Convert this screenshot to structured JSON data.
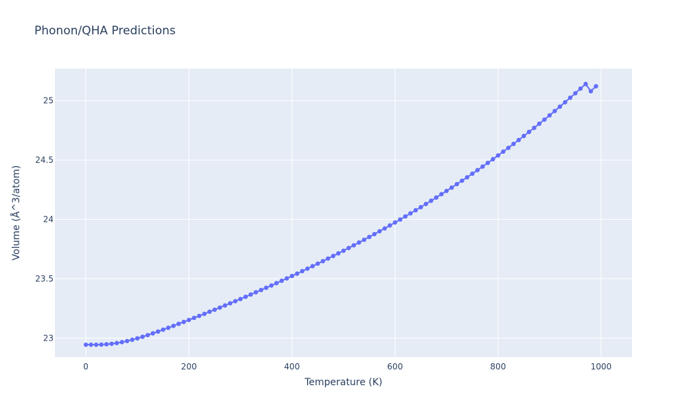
{
  "chart_data": {
    "type": "scatter",
    "mode": "lines+markers",
    "title": "Phonon/QHA Predictions",
    "xlabel": "Temperature (K)",
    "ylabel": "Volume (Å^3/atom)",
    "xlim": [
      -60,
      1060
    ],
    "ylim": [
      22.84,
      25.27
    ],
    "xticks": [
      0,
      200,
      400,
      600,
      800,
      1000
    ],
    "yticks": [
      23,
      23.5,
      24,
      24.5,
      25
    ],
    "grid": true,
    "legend": "none",
    "series": [
      {
        "x": [
          0,
          10,
          20,
          30,
          40,
          50,
          60,
          70,
          80,
          90,
          100,
          110,
          120,
          130,
          140,
          150,
          160,
          170,
          180,
          190,
          200,
          210,
          220,
          230,
          240,
          250,
          260,
          270,
          280,
          290,
          300,
          310,
          320,
          330,
          340,
          350,
          360,
          370,
          380,
          390,
          400,
          410,
          420,
          430,
          440,
          450,
          460,
          470,
          480,
          490,
          500,
          510,
          520,
          530,
          540,
          550,
          560,
          570,
          580,
          590,
          600,
          610,
          620,
          630,
          640,
          650,
          660,
          670,
          680,
          690,
          700,
          710,
          720,
          730,
          740,
          750,
          760,
          770,
          780,
          790,
          800,
          810,
          820,
          830,
          840,
          850,
          860,
          870,
          880,
          890,
          900,
          910,
          920,
          930,
          940,
          950,
          960,
          970,
          980,
          990
        ],
        "y": [
          22.944,
          22.944,
          22.944,
          22.945,
          22.948,
          22.952,
          22.958,
          22.966,
          22.975,
          22.986,
          22.998,
          23.011,
          23.025,
          23.04,
          23.055,
          23.071,
          23.087,
          23.103,
          23.12,
          23.136,
          23.153,
          23.17,
          23.187,
          23.204,
          23.222,
          23.239,
          23.257,
          23.275,
          23.293,
          23.311,
          23.329,
          23.348,
          23.367,
          23.386,
          23.405,
          23.424,
          23.443,
          23.463,
          23.483,
          23.503,
          23.523,
          23.543,
          23.564,
          23.585,
          23.606,
          23.627,
          23.648,
          23.67,
          23.692,
          23.714,
          23.736,
          23.759,
          23.782,
          23.805,
          23.828,
          23.852,
          23.876,
          23.9,
          23.924,
          23.949,
          23.974,
          23.999,
          24.025,
          24.051,
          24.077,
          24.103,
          24.13,
          24.157,
          24.184,
          24.212,
          24.24,
          24.268,
          24.297,
          24.326,
          24.355,
          24.385,
          24.415,
          24.445,
          24.476,
          24.507,
          24.539,
          24.571,
          24.603,
          24.636,
          24.669,
          24.703,
          24.737,
          24.771,
          24.806,
          24.841,
          24.877,
          24.913,
          24.95,
          24.987,
          25.025,
          25.063,
          25.102,
          25.141,
          25.08,
          25.122
        ]
      }
    ],
    "colors": {
      "plot_bg": "#e5ecf6",
      "grid": "#ffffff",
      "marker": "#636efa",
      "text": "#2a3f5f"
    }
  }
}
